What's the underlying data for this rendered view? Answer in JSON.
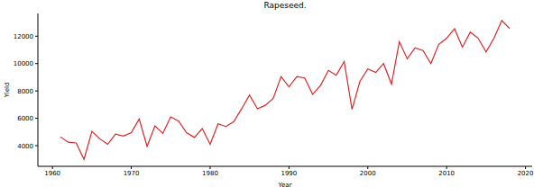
{
  "chart_data": {
    "type": "line",
    "title": "Rapeseed.",
    "x_label": "Year",
    "y_label": "Yield",
    "x": [
      1961,
      1962,
      1963,
      1964,
      1965,
      1966,
      1967,
      1968,
      1969,
      1970,
      1971,
      1972,
      1973,
      1974,
      1975,
      1976,
      1977,
      1978,
      1979,
      1980,
      1981,
      1982,
      1983,
      1984,
      1985,
      1986,
      1987,
      1988,
      1989,
      1990,
      1991,
      1992,
      1993,
      1994,
      1995,
      1996,
      1997,
      1998,
      1999,
      2000,
      2001,
      2002,
      2003,
      2004,
      2005,
      2006,
      2007,
      2008,
      2009,
      2010,
      2011,
      2012,
      2013,
      2014,
      2015,
      2016,
      2017,
      2018
    ],
    "values": [
      4650,
      4250,
      4200,
      3000,
      5050,
      4500,
      4100,
      4850,
      4700,
      4950,
      5950,
      3950,
      5450,
      4900,
      6100,
      5800,
      4950,
      4600,
      5250,
      4100,
      5600,
      5400,
      5750,
      6700,
      7700,
      6700,
      6950,
      7450,
      9050,
      8300,
      9050,
      8950,
      7750,
      8400,
      9500,
      9150,
      10150,
      6650,
      8700,
      9600,
      9350,
      10000,
      8500,
      11600,
      10350,
      11150,
      10950,
      10000,
      11400,
      11850,
      12550,
      11200,
      12300,
      11850,
      10850,
      11850,
      13150,
      12550
    ],
    "color": "#d62728",
    "xlim": [
      1958.15,
      2020.85
    ],
    "ylim": [
      2490,
      13660
    ],
    "xticks": [
      1960,
      1970,
      1980,
      1990,
      2000,
      2010,
      2020
    ],
    "yticks": [
      4000,
      6000,
      8000,
      10000,
      12000
    ],
    "grid": false
  }
}
